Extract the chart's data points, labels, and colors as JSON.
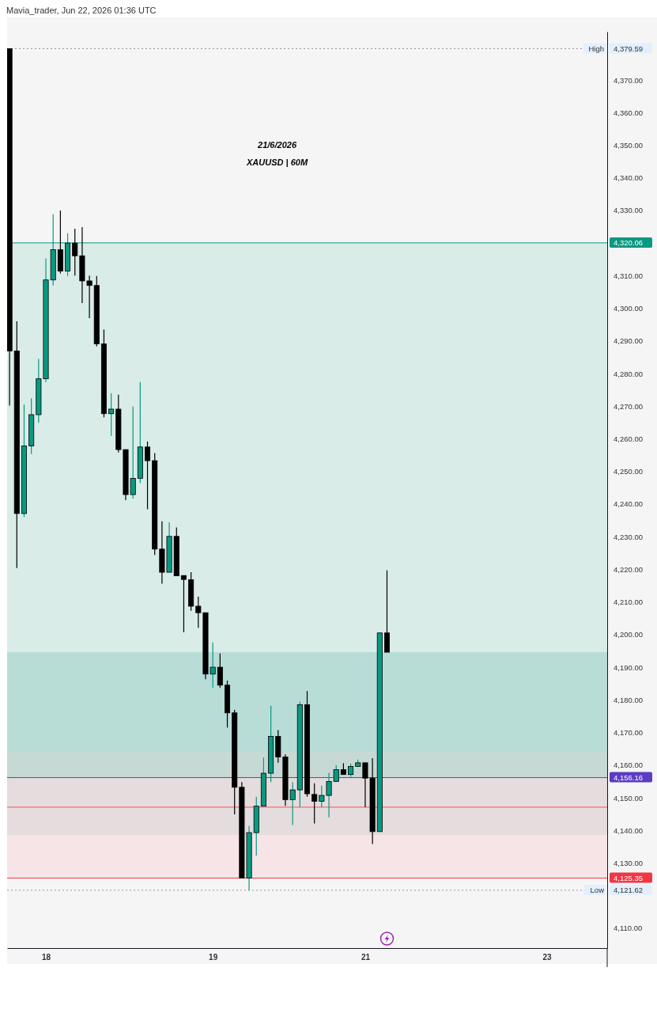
{
  "chart_data": {
    "type": "candlestick",
    "title": "21/6/2026",
    "subtitle": "XAUUSD | 60M",
    "annotations": [
      "Mavia_trader, Jun 22, 2026 01:36 UTC"
    ],
    "categories": [
      null,
      null,
      null,
      null,
      null,
      "18",
      null,
      null,
      null,
      null,
      null,
      null,
      null,
      null,
      null,
      null,
      null,
      null,
      null,
      null,
      null,
      null,
      null,
      null,
      null,
      null,
      null,
      null,
      "19",
      null,
      null,
      null,
      null,
      null,
      null,
      null,
      null,
      null,
      null,
      null,
      null,
      null,
      null,
      null,
      null,
      null,
      null,
      null,
      null,
      "21",
      null,
      null,
      null,
      null,
      null,
      null,
      null,
      null,
      null,
      null,
      null,
      null,
      null,
      null,
      null,
      null,
      null,
      null,
      null,
      null,
      null,
      null,
      null,
      null,
      "23",
      null,
      null,
      null,
      null,
      null,
      null,
      null,
      null
    ],
    "ohlc": [
      [
        4379.59,
        4379.59,
        4270.2,
        4286.9
      ],
      [
        4286.9,
        4296,
        4220.4,
        4237.1
      ],
      [
        4237.1,
        4270.5,
        4236,
        4257.8
      ],
      [
        4257.8,
        4272.4,
        4255.3,
        4267.4
      ],
      [
        4267.4,
        4284.5,
        4264.9,
        4278.4
      ],
      [
        4278.4,
        4315.3,
        4277.4,
        4308.7
      ],
      [
        4308.7,
        4328.8,
        4307,
        4318
      ],
      [
        4318,
        4330,
        4310.7,
        4311.4
      ],
      [
        4311.4,
        4323,
        4309.9,
        4320
      ],
      [
        4320,
        4324.4,
        4310,
        4316.1
      ],
      [
        4316.1,
        4324.9,
        4301.6,
        4308.4
      ],
      [
        4308.4,
        4310,
        4297,
        4307
      ],
      [
        4307,
        4309.9,
        4288.3,
        4289.1
      ],
      [
        4289.1,
        4293.5,
        4266.6,
        4267.7
      ],
      [
        4267.7,
        4274,
        4260.9,
        4269.1
      ],
      [
        4269.1,
        4273.5,
        4255.8,
        4256.7
      ],
      [
        4256.7,
        4256.7,
        4241.2,
        4242.9
      ],
      [
        4242.9,
        4269.9,
        4241.7,
        4247.9
      ],
      [
        4247.9,
        4277.4,
        4246.4,
        4257.5
      ],
      [
        4257.5,
        4259.2,
        4238.4,
        4253.3
      ],
      [
        4253.3,
        4255.6,
        4224.4,
        4226.2
      ],
      [
        4226.2,
        4234.7,
        4215.6,
        4219.1
      ],
      [
        4219.1,
        4234.4,
        4219.1,
        4230.1
      ],
      [
        4230.1,
        4232.8,
        4218,
        4218
      ],
      [
        4218.1,
        4218.1,
        4200.7,
        4216.9
      ],
      [
        4216.8,
        4219.1,
        4207.3,
        4208.7
      ],
      [
        4208.7,
        4211.6,
        4202.1,
        4206.7
      ],
      [
        4206.7,
        4206.7,
        4186.3,
        4187.9
      ],
      [
        4187.9,
        4197.6,
        4183.7,
        4190
      ],
      [
        4190,
        4194.2,
        4183.7,
        4184.5
      ],
      [
        4184.5,
        4185.9,
        4171.5,
        4176
      ],
      [
        4176,
        4176.9,
        4144.9,
        4153.2
      ],
      [
        4153.2,
        4154.8,
        4125.4,
        4125.4
      ],
      [
        4125.4,
        4141.3,
        4121.62,
        4139.3
      ],
      [
        4139.3,
        4150.3,
        4132.3,
        4147.4
      ],
      [
        4147.4,
        4162.3,
        4147.4,
        4157.5
      ],
      [
        4157.5,
        4178.2,
        4154.8,
        4168.8
      ],
      [
        4168.8,
        4170.7,
        4160.7,
        4162.5
      ],
      [
        4162.5,
        4163.3,
        4147.5,
        4149.4
      ],
      [
        4149.4,
        4154.8,
        4141.6,
        4152.4
      ],
      [
        4152.4,
        4179.4,
        4147.1,
        4178.5
      ],
      [
        4178.5,
        4182.7,
        4150.3,
        4151.2
      ],
      [
        4151,
        4154.4,
        4142.1,
        4148.9
      ],
      [
        4148.9,
        4153.7,
        4147.1,
        4150.7
      ],
      [
        4150.7,
        4157.6,
        4144,
        4155
      ],
      [
        4155,
        4160,
        4155,
        4158.6
      ],
      [
        4158.6,
        4160.6,
        4157.1,
        4157.1
      ],
      [
        4157.1,
        4160.4,
        4156.4,
        4159.6
      ],
      [
        4159.6,
        4161.7,
        4159.6,
        4160.7
      ],
      [
        4160.7,
        4160.7,
        4147.1,
        4156
      ],
      [
        4156,
        4162.1,
        4135.8,
        4139.6
      ],
      [
        4139.6,
        4200.5,
        4139.6,
        4200.5
      ],
      [
        4200.5,
        4219.7,
        4194.6,
        4194.6
      ],
      null,
      null,
      null,
      null,
      null,
      null,
      null,
      null,
      null,
      null,
      null,
      null,
      null,
      null,
      null,
      null,
      null,
      null,
      null,
      null,
      null,
      null,
      null,
      null,
      null,
      null,
      null,
      null,
      null,
      null
    ],
    "colors": [
      "#000000",
      "#000000",
      "#089981",
      "#089981",
      "#089981",
      "#089981",
      "#089981",
      "#000000",
      "#089981",
      "#000000",
      "#000000",
      "#000000",
      "#000000",
      "#000000",
      "#089981",
      "#000000",
      "#000000",
      "#089981",
      "#089981",
      "#000000",
      "#000000",
      "#000000",
      "#089981",
      "#000000",
      "#000000",
      "#000000",
      "#000000",
      "#000000",
      "#089981",
      "#000000",
      "#000000",
      "#000000",
      "#000000",
      "#089981",
      "#089981",
      "#089981",
      "#089981",
      "#000000",
      "#000000",
      "#089981",
      "#089981",
      "#000000",
      "#000000",
      "#089981",
      "#089981",
      "#089981",
      "#000000",
      "#089981",
      "#089981",
      "#000000",
      "#000000",
      "#089981",
      "#000000",
      null,
      null,
      null,
      null,
      null,
      null,
      null,
      null,
      null,
      null,
      null,
      null,
      null,
      null,
      null,
      null,
      null,
      null,
      null,
      null,
      null,
      null,
      null,
      null,
      null,
      null,
      null,
      null,
      null,
      null
    ],
    "ylim": [
      4103.9,
      4384.8
    ],
    "yticks": [
      {
        "value": 4110,
        "label": "4,110.00"
      },
      {
        "value": 4121.62,
        "label": "4,121.62"
      },
      {
        "value": 4125.35,
        "label": "4,125.35"
      },
      {
        "value": 4130,
        "label": "4,130.00"
      },
      {
        "value": 4140,
        "label": "4,140.00"
      },
      {
        "value": 4150,
        "label": "4,150.00"
      },
      {
        "value": 4156.16,
        "label": "4,156.16"
      },
      {
        "value": 4160,
        "label": "4,160.00"
      },
      {
        "value": 4170,
        "label": "4,170.00"
      },
      {
        "value": 4180,
        "label": "4,180.00"
      },
      {
        "value": 4190,
        "label": "4,190.00"
      },
      {
        "value": 4200,
        "label": "4,200.00"
      },
      {
        "value": 4210,
        "label": "4,210.00"
      },
      {
        "value": 4220,
        "label": "4,220.00"
      },
      {
        "value": 4230,
        "label": "4,230.00"
      },
      {
        "value": 4240,
        "label": "4,240.00"
      },
      {
        "value": 4250,
        "label": "4,250.00"
      },
      {
        "value": 4260,
        "label": "4,260.00"
      },
      {
        "value": 4270,
        "label": "4,270.00"
      },
      {
        "value": 4280,
        "label": "4,280.00"
      },
      {
        "value": 4290,
        "label": "4,290.00"
      },
      {
        "value": 4300,
        "label": "4,300.00"
      },
      {
        "value": 4310,
        "label": "4,310.00"
      },
      {
        "value": 4320.06,
        "label": "4,320.06"
      },
      {
        "value": 4330,
        "label": "4,330.00"
      },
      {
        "value": 4340,
        "label": "4,340.00"
      },
      {
        "value": 4350,
        "label": "4,350.00"
      },
      {
        "value": 4360,
        "label": "4,360.00"
      },
      {
        "value": 4370,
        "label": "4,370.00"
      },
      {
        "value": 4379.59,
        "label": "4,379.59"
      }
    ],
    "ref_lines": [
      {
        "axis": "y",
        "value": 4379.59,
        "label": "High",
        "line_style": "dotted",
        "color": "#9598a1"
      },
      {
        "axis": "y",
        "value": 4121.62,
        "label": "Low",
        "line_style": "dotted",
        "color": "#9598a1"
      },
      {
        "axis": "y",
        "value": 4320.06,
        "color": "#089981"
      },
      {
        "axis": "y",
        "value": 4156.16,
        "color": "#5b3cc4"
      },
      {
        "axis": "y",
        "value": 4125.35,
        "color": "#f23645"
      },
      {
        "axis": "y",
        "value": 4147.1,
        "color": "#f7525f"
      }
    ],
    "bands": [
      {
        "axis": "y",
        "from": 4156.16,
        "to": 4320.06,
        "color": "#c2e3dc"
      },
      {
        "axis": "y",
        "from": 4156.16,
        "to": 4194.6,
        "color": "#9bd2c6"
      },
      {
        "axis": "y",
        "from": 4125.35,
        "to": 4156.16,
        "color": "#f5d6db"
      },
      {
        "axis": "y",
        "from": 4138.6,
        "to": 4164.1,
        "color": "#d6d6d6"
      }
    ]
  }
}
